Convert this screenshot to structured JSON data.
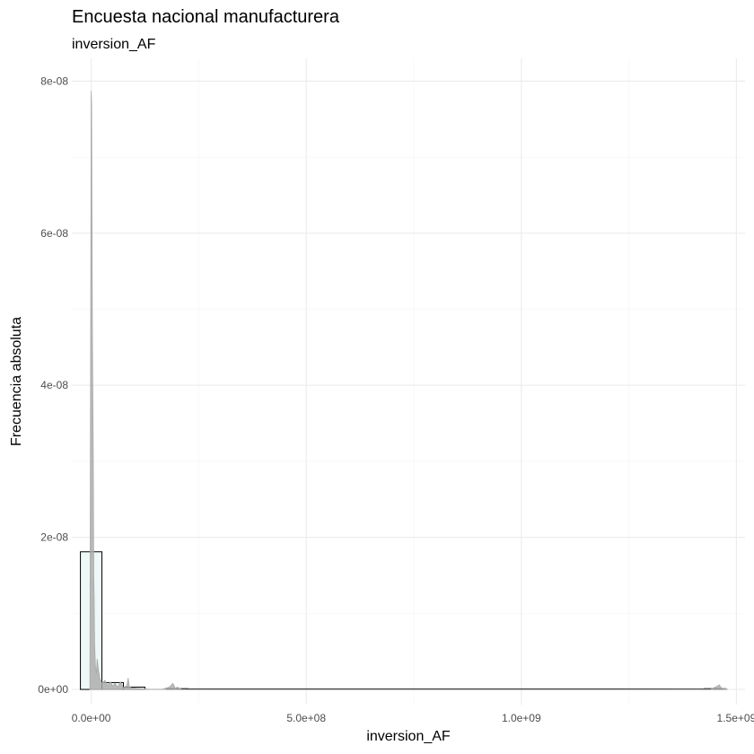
{
  "chart_data": {
    "type": "histogram",
    "title": "Encuesta nacional manufacturera",
    "subtitle": "inversion_AF",
    "xlabel": "inversion_AF",
    "ylabel": "Frecuencia absoluta",
    "xlim": [
      -45000000,
      1520000000
    ],
    "ylim": [
      -2e-09,
      8.3e-08
    ],
    "x_ticks": [
      0,
      500000000,
      1000000000,
      1500000000
    ],
    "x_tick_labels": [
      "0.0e+00",
      "5.0e+08",
      "1.0e+09",
      "1.5e+09"
    ],
    "y_ticks": [
      0,
      2e-08,
      4e-08,
      6e-08,
      8e-08
    ],
    "y_tick_labels": [
      "0e+00",
      "2e-08",
      "4e-08",
      "6e-08",
      "8e-08"
    ],
    "grid": true,
    "bins": [
      {
        "x0": -25000000,
        "x1": 25000000,
        "y": 1.81e-08
      },
      {
        "x0": 25000000,
        "x1": 75000000,
        "y": 9e-10
      },
      {
        "x0": 75000000,
        "x1": 125000000,
        "y": 3e-10
      },
      {
        "x0": 175000000,
        "x1": 225000000,
        "y": 1e-10
      },
      {
        "x0": 225000000,
        "x1": 1425000000,
        "y": 2e-11
      },
      {
        "x0": 1425000000,
        "x1": 1475000000,
        "y": 1e-10
      }
    ],
    "fill_color": "#eef8f6",
    "density_color": "#a9a9a9",
    "density": {
      "x": [
        -3000000,
        0,
        1000000,
        2000000,
        3000000,
        4000000,
        5000000,
        6000000,
        7000000,
        8000000,
        10000000,
        12000000,
        14000000,
        17000000,
        20000000,
        25000000,
        32000000,
        38000000,
        45000000,
        50000000,
        55000000,
        62000000,
        68000000,
        75000000,
        83000000,
        86000000,
        89000000,
        95000000,
        110000000,
        135000000,
        165000000,
        182000000,
        190000000,
        196000000,
        200000000,
        210000000,
        300000000,
        600000000,
        900000000,
        1200000000,
        1440000000,
        1455000000,
        1460000000,
        1465000000,
        1475000000,
        1480000000
      ],
      "y": [
        0,
        7.87e-08,
        7.7e-08,
        6.1e-08,
        4.6e-08,
        3.8e-08,
        3e-08,
        1.5e-08,
        1.2e-08,
        6e-09,
        3e-09,
        2e-09,
        4e-09,
        2.5e-09,
        1.5e-09,
        8e-10,
        1.2e-09,
        5e-10,
        1e-09,
        4e-10,
        8e-10,
        3e-10,
        1e-09,
        2e-10,
        5e-10,
        1.5e-09,
        3e-10,
        2e-10,
        1e-10,
        3e-11,
        2e-11,
        3e-10,
        8e-10,
        1e-10,
        3e-10,
        2e-11,
        1e-11,
        0,
        0,
        0,
        2e-11,
        4e-10,
        6e-10,
        2e-10,
        1e-10,
        0
      ]
    }
  }
}
